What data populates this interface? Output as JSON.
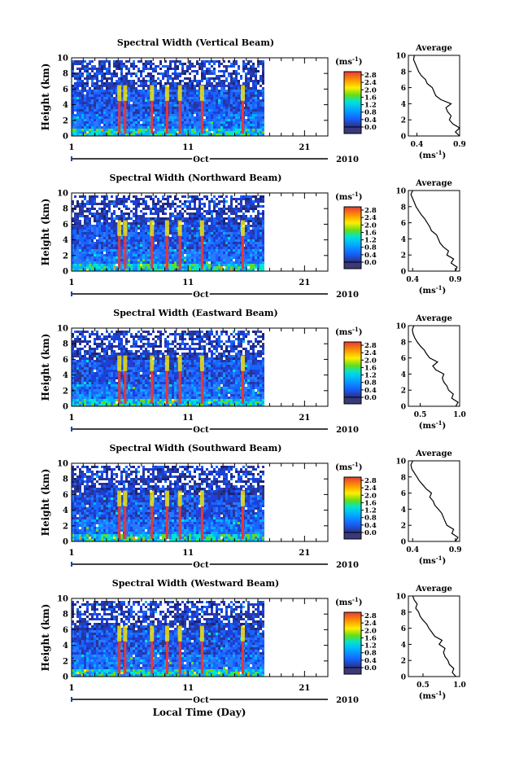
{
  "figure": {
    "xlabel": "Local Time (Day)",
    "month_label": "Oct",
    "year_label": "2010",
    "x_tick_labels": [
      "1",
      "11",
      "21"
    ],
    "cbar_unit": "(ms",
    "cbar_unit_exp": "-1",
    "avg_title": "Average",
    "avg_unit": "(ms",
    "avg_unit_exp": "-1"
  },
  "chart_data": [
    {
      "type": "heatmap",
      "title": "Spectral Width (Vertical Beam)",
      "ylabel": "Height (km)",
      "xlim": [
        1,
        23
      ],
      "ylim": [
        0,
        10
      ],
      "data_xlim": [
        1,
        17.5
      ],
      "yticks": [
        "0",
        "2",
        "4",
        "6",
        "8",
        "10"
      ],
      "cbar_ticks": [
        "0.0",
        "0.4",
        "0.8",
        "1.2",
        "1.6",
        "2.0",
        "2.4",
        "2.8"
      ],
      "spikes": [
        5.1,
        5.6,
        7.9,
        9.2,
        10.3,
        12.2,
        15.7
      ],
      "avg_profile": {
        "xlim": [
          0.3,
          0.9
        ],
        "xticks": [
          "0.4",
          "0.9"
        ],
        "heights": [
          0,
          0.5,
          1,
          1.5,
          2,
          2.5,
          3,
          3.5,
          4,
          4.5,
          5,
          5.5,
          6,
          6.5,
          7,
          7.5,
          8,
          8.5,
          9,
          9.5,
          10
        ],
        "values": [
          0.9,
          0.85,
          0.9,
          0.82,
          0.78,
          0.8,
          0.76,
          0.74,
          0.8,
          0.68,
          0.62,
          0.6,
          0.58,
          0.52,
          0.5,
          0.45,
          0.42,
          0.4,
          0.38,
          0.36,
          0.37
        ]
      }
    },
    {
      "type": "heatmap",
      "title": "Spectral Width (Northward Beam)",
      "ylabel": "Height (km)",
      "xlim": [
        1,
        23
      ],
      "ylim": [
        0,
        10
      ],
      "data_xlim": [
        1,
        17.5
      ],
      "yticks": [
        "0",
        "2",
        "4",
        "6",
        "8",
        "10"
      ],
      "cbar_ticks": [
        "0.0",
        "0.4",
        "0.8",
        "1.2",
        "1.6",
        "2.0",
        "2.4",
        "2.8"
      ],
      "spikes": [
        5.1,
        5.6,
        7.9,
        9.2,
        10.3,
        12.2,
        15.7
      ],
      "avg_profile": {
        "xlim": [
          0.35,
          0.95
        ],
        "xticks": [
          "0.4",
          "0.9"
        ],
        "heights": [
          0,
          0.5,
          1,
          1.5,
          2,
          2.5,
          3,
          3.5,
          4,
          4.5,
          5,
          5.5,
          6,
          6.5,
          7,
          7.5,
          8,
          8.5,
          9,
          9.5,
          10
        ],
        "values": [
          0.9,
          0.92,
          0.85,
          0.88,
          0.8,
          0.82,
          0.76,
          0.72,
          0.7,
          0.68,
          0.62,
          0.6,
          0.57,
          0.54,
          0.5,
          0.47,
          0.44,
          0.42,
          0.4,
          0.38,
          0.4
        ]
      }
    },
    {
      "type": "heatmap",
      "title": "Spectral Width (Eastward Beam)",
      "ylabel": "Height (km)",
      "xlim": [
        1,
        23
      ],
      "ylim": [
        0,
        10
      ],
      "data_xlim": [
        1,
        17.5
      ],
      "yticks": [
        "0",
        "2",
        "4",
        "6",
        "8",
        "10"
      ],
      "cbar_ticks": [
        "0.0",
        "0.4",
        "0.8",
        "1.2",
        "1.6",
        "2.0",
        "2.4",
        "2.8"
      ],
      "spikes": [
        5.1,
        5.6,
        7.9,
        9.2,
        10.3,
        12.2,
        15.7
      ],
      "avg_profile": {
        "xlim": [
          0.35,
          1.0
        ],
        "xticks": [
          "0.5",
          "1.0"
        ],
        "heights": [
          0,
          0.5,
          1,
          1.5,
          2,
          2.5,
          3,
          3.5,
          4,
          4.5,
          5,
          5.5,
          6,
          6.5,
          7,
          7.5,
          8,
          8.5,
          9,
          9.5,
          10
        ],
        "values": [
          0.95,
          0.98,
          0.9,
          0.92,
          0.86,
          0.84,
          0.8,
          0.78,
          0.8,
          0.7,
          0.66,
          0.72,
          0.62,
          0.58,
          0.55,
          0.5,
          0.46,
          0.43,
          0.41,
          0.4,
          0.42
        ]
      }
    },
    {
      "type": "heatmap",
      "title": "Spectral Width (Southward Beam)",
      "ylabel": "Height (km)",
      "xlim": [
        1,
        23
      ],
      "ylim": [
        0,
        10
      ],
      "data_xlim": [
        1,
        17.5
      ],
      "yticks": [
        "0",
        "2",
        "4",
        "6",
        "8",
        "10"
      ],
      "cbar_ticks": [
        "0.0",
        "0.4",
        "0.8",
        "1.2",
        "1.6",
        "2.0",
        "2.4",
        "2.8"
      ],
      "spikes": [
        5.1,
        5.6,
        7.9,
        9.2,
        10.3,
        12.2,
        15.7
      ],
      "avg_profile": {
        "xlim": [
          0.35,
          0.95
        ],
        "xticks": [
          "0.4",
          "0.9"
        ],
        "heights": [
          0,
          0.5,
          1,
          1.5,
          2,
          2.5,
          3,
          3.5,
          4,
          4.5,
          5,
          5.5,
          6,
          6.5,
          7,
          7.5,
          8,
          8.5,
          9,
          9.5,
          10
        ],
        "values": [
          0.9,
          0.93,
          0.86,
          0.88,
          0.8,
          0.78,
          0.76,
          0.74,
          0.7,
          0.66,
          0.64,
          0.6,
          0.62,
          0.56,
          0.52,
          0.48,
          0.45,
          0.42,
          0.39,
          0.38,
          0.4
        ]
      }
    },
    {
      "type": "heatmap",
      "title": "Spectral Width (Westward Beam)",
      "ylabel": "Height (km)",
      "xlim": [
        1,
        23
      ],
      "ylim": [
        0,
        10
      ],
      "data_xlim": [
        1,
        17.5
      ],
      "yticks": [
        "0",
        "2",
        "4",
        "6",
        "8",
        "10"
      ],
      "cbar_ticks": [
        "0.0",
        "0.4",
        "0.8",
        "1.2",
        "1.6",
        "2.0",
        "2.4",
        "2.8"
      ],
      "spikes": [
        5.1,
        5.6,
        7.9,
        9.2,
        10.3,
        12.2,
        15.7
      ],
      "avg_profile": {
        "xlim": [
          0.3,
          1.0
        ],
        "xticks": [
          "0.5",
          "1.0"
        ],
        "heights": [
          0,
          0.5,
          1,
          1.5,
          2,
          2.5,
          3,
          3.5,
          4,
          4.5,
          5,
          5.5,
          6,
          6.5,
          7,
          7.5,
          8,
          8.5,
          9,
          9.5,
          10
        ],
        "values": [
          0.95,
          0.9,
          0.92,
          0.86,
          0.84,
          0.8,
          0.78,
          0.8,
          0.72,
          0.76,
          0.66,
          0.62,
          0.58,
          0.55,
          0.5,
          0.46,
          0.44,
          0.4,
          0.42,
          0.38,
          0.36
        ]
      }
    }
  ]
}
